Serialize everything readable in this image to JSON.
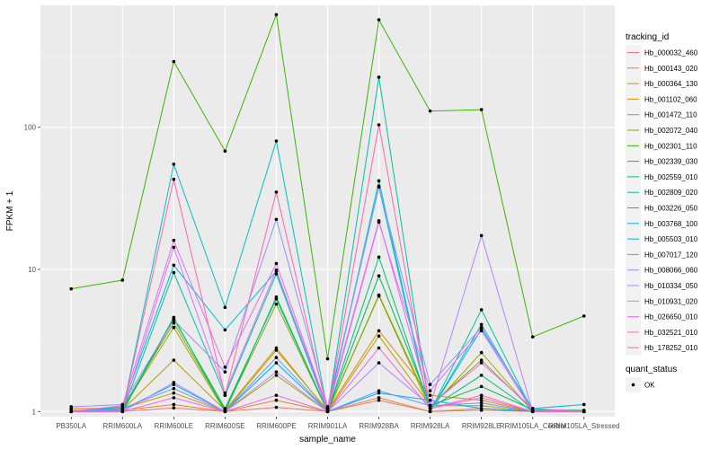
{
  "chart_data": {
    "type": "line",
    "xlabel": "sample_name",
    "ylabel": "FPKM + 1",
    "y_scale": "log10",
    "ylim": [
      0.92,
      720
    ],
    "y_ticks": [
      {
        "value": 1,
        "label": "1"
      },
      {
        "value": 10,
        "label": "10"
      },
      {
        "value": 100,
        "label": "100"
      }
    ],
    "categories": [
      "PB350LA",
      "RRIM600LA",
      "RRIM600LE",
      "RRIM600SE",
      "RRIM600PE",
      "RRIM901LA",
      "RRIM928BA",
      "RRIM928LA",
      "RRIM928LE",
      "RRIM105LA_Control",
      "RRIM105LA_Stressed"
    ],
    "legend": {
      "title": "tracking_id",
      "position": "right",
      "shape_title": "quant_status",
      "shape_entries": [
        "OK"
      ]
    },
    "series": [
      {
        "name": "Hb_000032_460",
        "color": "#F8766D",
        "values": [
          1.0,
          1.0,
          1.06,
          1.0,
          1.07,
          1.0,
          1.2,
          1.0,
          1.02,
          1.0,
          1.0
        ]
      },
      {
        "name": "Hb_000143_020",
        "color": "#EA8331",
        "values": [
          1.02,
          1.02,
          1.12,
          1.0,
          1.2,
          1.0,
          1.25,
          1.0,
          1.05,
          1.0,
          1.0
        ]
      },
      {
        "name": "Hb_000364_130",
        "color": "#D89000",
        "values": [
          1.05,
          1.05,
          1.35,
          1.0,
          2.7,
          1.02,
          3.7,
          1.3,
          1.2,
          1.0,
          1.0
        ]
      },
      {
        "name": "Hb_001102_060",
        "color": "#C09B00",
        "values": [
          1.0,
          1.03,
          2.3,
          1.02,
          2.8,
          1.0,
          3.4,
          1.1,
          1.1,
          1.0,
          1.0
        ]
      },
      {
        "name": "Hb_001472_110",
        "color": "#A3A500",
        "values": [
          1.0,
          1.05,
          3.9,
          1.0,
          1.8,
          1.0,
          6.5,
          1.05,
          2.6,
          1.0,
          1.0
        ]
      },
      {
        "name": "Hb_002072_040",
        "color": "#7CAE00",
        "values": [
          1.0,
          1.06,
          4.2,
          1.02,
          5.7,
          1.0,
          6.6,
          1.1,
          2.3,
          1.02,
          1.0
        ]
      },
      {
        "name": "Hb_002301_110",
        "color": "#39B600",
        "values": [
          7.3,
          8.4,
          290,
          68,
          620,
          2.35,
          570,
          130,
          133,
          3.35,
          4.7
        ]
      },
      {
        "name": "Hb_002339_030",
        "color": "#00BB4E",
        "values": [
          1.0,
          1.0,
          4.5,
          1.05,
          6.2,
          1.0,
          9.0,
          1.1,
          1.5,
          1.03,
          1.02
        ]
      },
      {
        "name": "Hb_002559_010",
        "color": "#00BF7D",
        "values": [
          1.0,
          1.02,
          4.6,
          1.0,
          6.4,
          1.0,
          12.2,
          1.05,
          1.8,
          1.0,
          1.0
        ]
      },
      {
        "name": "Hb_002809_020",
        "color": "#00C1A3",
        "values": [
          1.0,
          1.0,
          9.5,
          1.3,
          9.3,
          1.0,
          225,
          1.0,
          5.2,
          1.0,
          1.0
        ]
      },
      {
        "name": "Hb_003226_050",
        "color": "#00BFC4",
        "values": [
          1.0,
          1.0,
          55,
          5.4,
          80,
          1.0,
          42,
          1.0,
          4.1,
          1.0,
          1.0
        ]
      },
      {
        "name": "Hb_003768_100",
        "color": "#00B8E5",
        "values": [
          1.0,
          1.08,
          10.7,
          3.75,
          9.7,
          1.05,
          38,
          1.0,
          3.8,
          1.05,
          1.12
        ]
      },
      {
        "name": "Hb_005503_010",
        "color": "#00A9FF",
        "values": [
          1.0,
          1.03,
          1.55,
          1.0,
          2.2,
          1.0,
          1.35,
          1.2,
          1.05,
          1.0,
          1.0
        ]
      },
      {
        "name": "Hb_007017_120",
        "color": "#619CFF",
        "values": [
          1.0,
          1.05,
          1.45,
          1.0,
          2.4,
          1.0,
          1.4,
          1.1,
          1.15,
          1.0,
          1.0
        ]
      },
      {
        "name": "Hb_008066_060",
        "color": "#9590FF",
        "values": [
          1.08,
          1.12,
          4.4,
          1.9,
          22.5,
          1.08,
          38.5,
          1.55,
          3.9,
          1.02,
          1.0
        ]
      },
      {
        "name": "Hb_010334_050",
        "color": "#B983FF",
        "values": [
          1.0,
          1.0,
          1.6,
          1.0,
          1.9,
          1.0,
          2.2,
          1.1,
          17.3,
          1.0,
          1.0
        ]
      },
      {
        "name": "Hb_010931_020",
        "color": "#D376FF",
        "values": [
          1.0,
          1.02,
          14.3,
          1.35,
          9.9,
          1.0,
          21.5,
          1.4,
          3.7,
          1.0,
          1.0
        ]
      },
      {
        "name": "Hb_026650_010",
        "color": "#E76BF3",
        "values": [
          1.0,
          1.1,
          16,
          2.05,
          11,
          1.05,
          22,
          1.1,
          2.2,
          1.05,
          1.0
        ]
      },
      {
        "name": "Hb_032521_010",
        "color": "#F564E3",
        "values": [
          1.0,
          1.0,
          1.25,
          1.0,
          1.3,
          1.0,
          2.8,
          1.05,
          1.25,
          1.0,
          1.0
        ]
      },
      {
        "name": "Hb_178252_010",
        "color": "#FF65AC",
        "values": [
          1.0,
          1.0,
          43,
          1.3,
          35,
          1.0,
          104,
          1.05,
          1.3,
          1.0,
          1.0
        ]
      }
    ]
  }
}
